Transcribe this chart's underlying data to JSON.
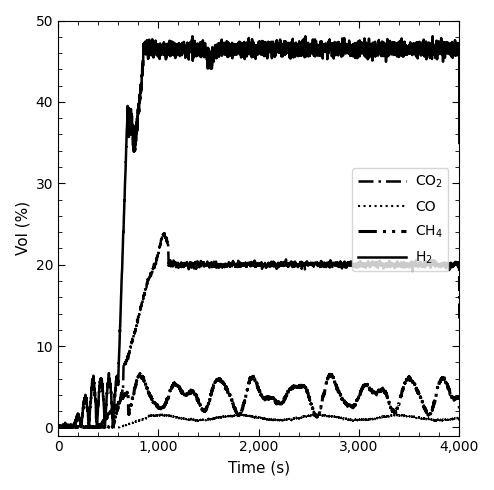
{
  "title": "",
  "xlabel": "Time (s)",
  "ylabel": "Vol (%)",
  "xlim": [
    0,
    4000
  ],
  "ylim": [
    -1,
    50
  ],
  "yticks": [
    0,
    10,
    20,
    30,
    40,
    50
  ],
  "xticks": [
    0,
    1000,
    2000,
    3000,
    4000
  ],
  "background_color": "#ffffff",
  "seed": 12345,
  "figsize": [
    4.94,
    4.9
  ],
  "dpi": 100
}
